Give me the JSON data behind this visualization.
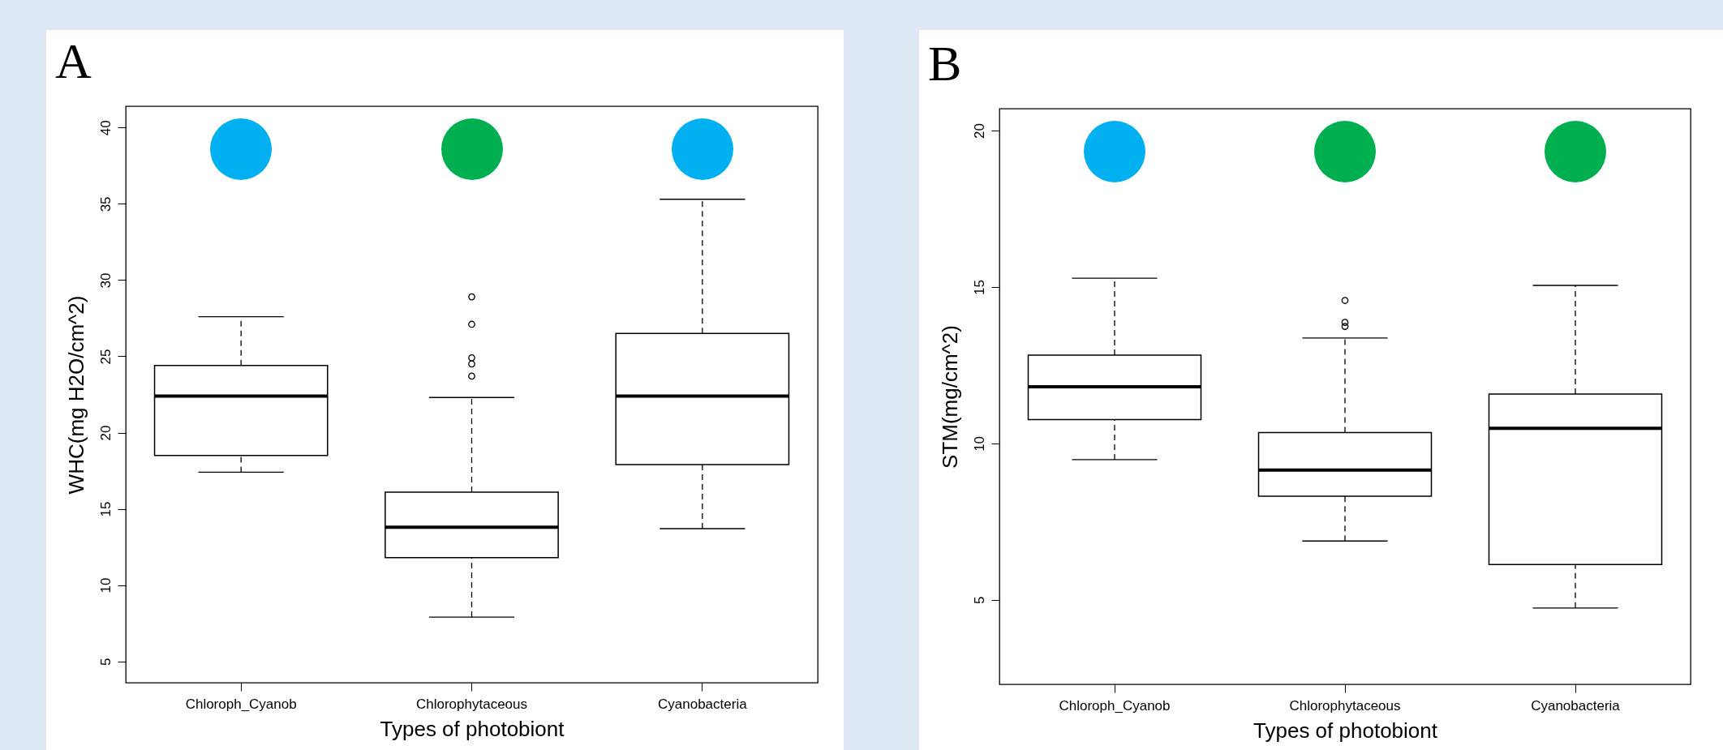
{
  "chart_data": [
    {
      "type": "box",
      "title": "A",
      "xlabel": "Types of photobiont",
      "ylabel": "WHC(mg H2O/cm^2)",
      "categories": [
        "Chloroph_Cyanob",
        "Chlorophytaceous",
        "Cyanobacteria"
      ],
      "ylim": [
        3.6,
        41.4
      ],
      "yticks": [
        5,
        10,
        15,
        20,
        25,
        30,
        35,
        40
      ],
      "grid": false,
      "boxes": [
        {
          "low": 17.4,
          "q1": 18.5,
          "median": 22.4,
          "q3": 24.4,
          "high": 27.6
        },
        {
          "low": 7.9,
          "q1": 11.8,
          "median": 13.8,
          "q3": 16.1,
          "high": 22.3,
          "outliers": [
            28.9,
            27.1,
            24.9,
            24.5,
            23.7
          ]
        },
        {
          "low": 13.7,
          "q1": 17.9,
          "median": 22.4,
          "q3": 26.5,
          "high": 35.3
        }
      ]
    },
    {
      "type": "box",
      "title": "B",
      "xlabel": "Types of photobiont",
      "ylabel": "STM(mg/cm^2)",
      "categories": [
        "Chloroph_Cyanob",
        "Chlorophytaceous",
        "Cyanobacteria"
      ],
      "ylim": [
        2.3,
        20.7
      ],
      "yticks": [
        5,
        10,
        15,
        20
      ],
      "grid": false,
      "boxes": [
        {
          "low": 9.48,
          "q1": 10.76,
          "median": 11.81,
          "q3": 12.82,
          "high": 15.28
        },
        {
          "low": 6.88,
          "q1": 8.31,
          "median": 9.15,
          "q3": 10.35,
          "high": 13.37,
          "outliers": [
            14.57,
            13.87,
            13.74
          ]
        },
        {
          "low": 4.74,
          "q1": 6.13,
          "median": 10.48,
          "q3": 11.58,
          "high": 15.05
        }
      ]
    }
  ]
}
